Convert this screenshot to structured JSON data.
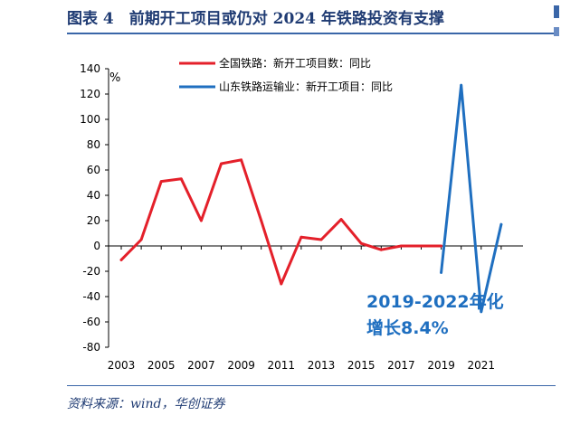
{
  "header": {
    "title": "图表 4　前期开工项目或仍对 2024 年铁路投资有支撑"
  },
  "footer": {
    "source": "资料来源：wind，华创证券"
  },
  "chart_data": {
    "type": "line",
    "title": "",
    "xlabel": "",
    "ylabel": "%",
    "ylim": [
      -80,
      140
    ],
    "yticks": [
      -80,
      -60,
      -40,
      -20,
      0,
      20,
      40,
      60,
      80,
      100,
      120,
      140
    ],
    "xlim": [
      2003,
      2022.6
    ],
    "xticks": [
      "2003",
      "2005",
      "2007",
      "2009",
      "2011",
      "2013",
      "2015",
      "2017",
      "2019",
      "2021"
    ],
    "grid": false,
    "legend_position": "top-center",
    "series": [
      {
        "name": "全国铁路：新开工项目数：同比",
        "color": "#e4202a",
        "points": [
          [
            2003,
            -11
          ],
          [
            2004,
            5
          ],
          [
            2005,
            51
          ],
          [
            2006,
            53
          ],
          [
            2007,
            20
          ],
          [
            2008,
            65
          ],
          [
            2009,
            68
          ],
          [
            2010,
            20
          ],
          [
            2011,
            -30
          ],
          [
            2012,
            7
          ],
          [
            2013,
            5
          ],
          [
            2014,
            21
          ],
          [
            2015,
            2
          ],
          [
            2016,
            -3
          ],
          [
            2017,
            0
          ],
          [
            2018,
            0
          ],
          [
            2019,
            0
          ]
        ]
      },
      {
        "name": "山东铁路运输业：新开工项目：同比",
        "color": "#1f6fc0",
        "points": [
          [
            2019,
            -21
          ],
          [
            2020,
            127
          ],
          [
            2021,
            -52
          ],
          [
            2022,
            17
          ]
        ]
      }
    ],
    "annotations": [
      "2019-2022年化",
      "增长8.4%"
    ]
  }
}
